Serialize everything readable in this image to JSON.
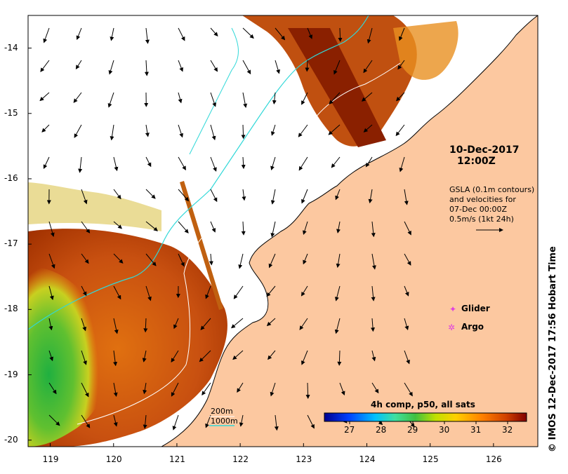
{
  "map": {
    "x_ticks": [
      "119",
      "120",
      "121",
      "122",
      "123",
      "124",
      "125",
      "126"
    ],
    "x_tick_values": [
      119,
      120,
      121,
      122,
      123,
      124,
      125,
      126
    ],
    "y_ticks": [
      "-14",
      "-15",
      "-16",
      "-17",
      "-18",
      "-19",
      "-20"
    ],
    "y_tick_values": [
      -14,
      -15,
      -16,
      -17,
      -18,
      -19,
      -20
    ],
    "lon_range": [
      118.65,
      126.7
    ],
    "lat_range": [
      -20.1,
      -13.5
    ]
  },
  "annotations": {
    "date_line1": "10-Dec-2017",
    "date_line2": "12:00Z",
    "gsla_lines": [
      "GSLA (0.1m contours)",
      "and velocities for",
      "07-Dec 00:00Z",
      "0.5m/s (1kt 24h)"
    ]
  },
  "legend": {
    "glider_label": "Glider",
    "argo_label": "Argo",
    "glider_color": "#e040e0",
    "argo_color": "#e040e0"
  },
  "colorbar": {
    "title": "4h comp, p50, all sats",
    "ticks": [
      "27",
      "28",
      "29",
      "30",
      "31",
      "32"
    ],
    "tick_values": [
      27,
      28,
      29,
      30,
      31,
      32
    ],
    "range": [
      26.2,
      32.6
    ],
    "colors": [
      "#00008f",
      "#0040ff",
      "#00c0ff",
      "#40e0a0",
      "#40c040",
      "#c0e000",
      "#ffd000",
      "#ff8000",
      "#d04000",
      "#800000"
    ]
  },
  "contours": {
    "label_200m": "200m",
    "label_1000m": "1000m",
    "color_200m": "#ffffff",
    "color_1000m": "#30d8d8"
  },
  "colors": {
    "land": "#fcc8a0",
    "no_data": "#ffffff"
  },
  "credit": "© IMOS 12-Dec-2017 17:56 Hobart Time"
}
